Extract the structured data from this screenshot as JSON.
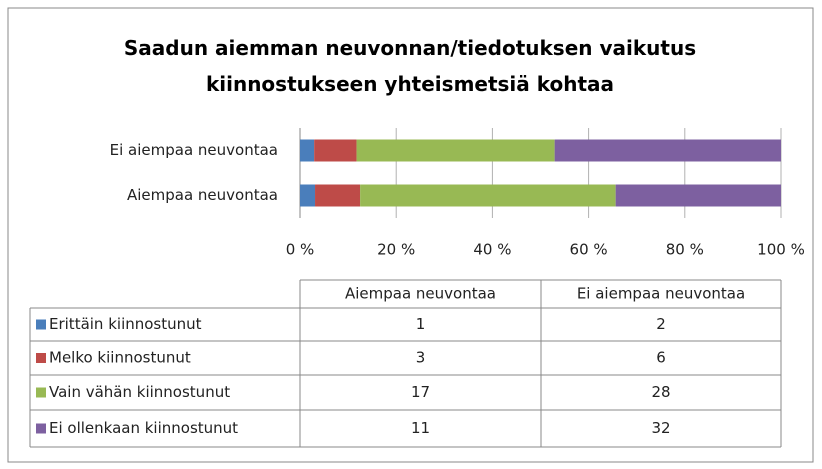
{
  "chart_data": {
    "type": "bar",
    "orientation": "horizontal",
    "stacking": "percent",
    "title": "Saadun aiemman neuvonnan/tiedotuksen vaikutus kiinnostukseen yhteismetsiä kohtaa",
    "categories": [
      "Aiempaa neuvontaa",
      "Ei aiempaa neuvontaa"
    ],
    "series": [
      {
        "name": "Erittäin kiinnostunut",
        "color": "#4a7ebb",
        "values": [
          1,
          2
        ]
      },
      {
        "name": "Melko kiinnostunut",
        "color": "#be4b48",
        "values": [
          3,
          6
        ]
      },
      {
        "name": "Vain vähän kiinnostunut",
        "color": "#98b954",
        "values": [
          17,
          28
        ]
      },
      {
        "name": "Ei ollenkaan kiinnostunut",
        "color": "#7d60a0",
        "values": [
          11,
          32
        ]
      }
    ],
    "xlim": [
      0,
      100
    ],
    "xticks": [
      {
        "value": 0,
        "label": "0 %"
      },
      {
        "value": 20,
        "label": "20 %"
      },
      {
        "value": 40,
        "label": "40 %"
      },
      {
        "value": 60,
        "label": "60 %"
      },
      {
        "value": 80,
        "label": "80 %"
      },
      {
        "value": 100,
        "label": "100 %"
      }
    ],
    "grid": true,
    "data_table": true
  }
}
